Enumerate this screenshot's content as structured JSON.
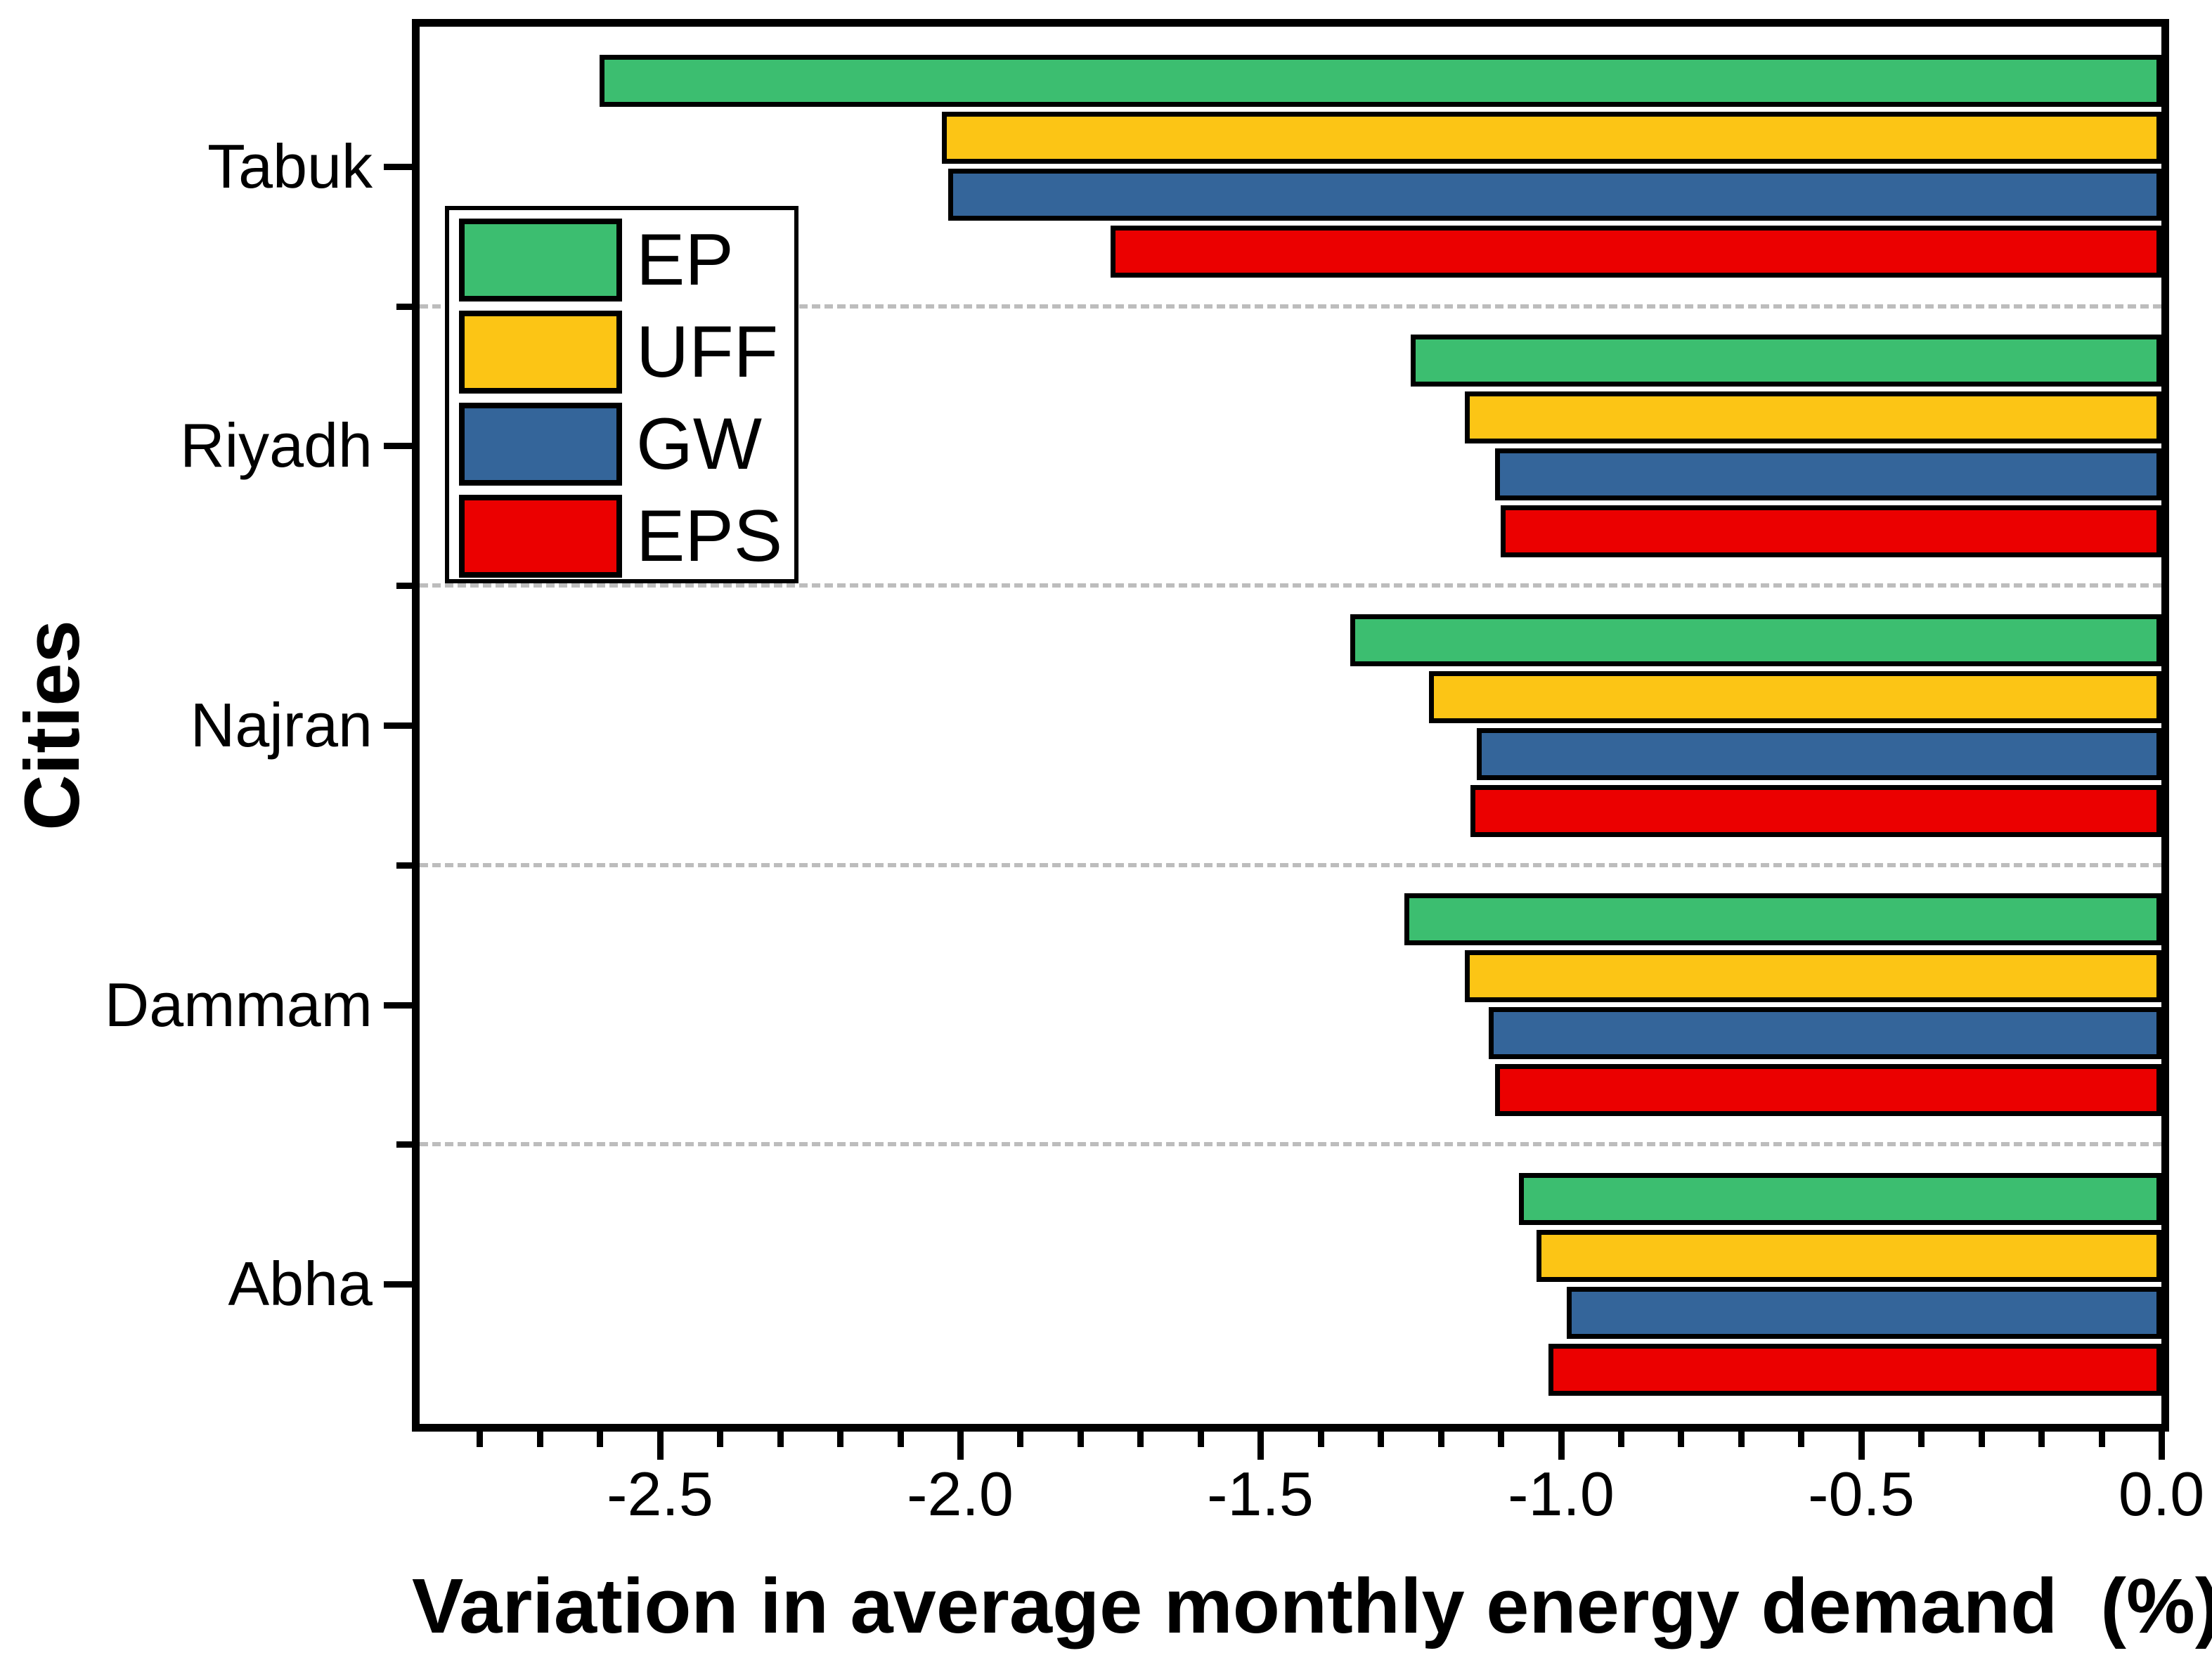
{
  "chart_data": {
    "type": "bar",
    "orientation": "horizontal",
    "xlabel": "Variation in average monthly energy demand  (%)",
    "ylabel": "Cities",
    "xlim": [
      -2.9,
      0.0
    ],
    "xtick_labels": [
      "-2.5",
      "-2.0",
      "-1.5",
      "-1.0",
      "-0.5",
      "0.0"
    ],
    "xticks": [
      -2.5,
      -2.0,
      -1.5,
      -1.0,
      -0.5,
      0.0
    ],
    "minor_tick_step": 0.1,
    "categories": [
      "Tabuk",
      "Riyadh",
      "Najran",
      "Dammam",
      "Abha"
    ],
    "series": [
      {
        "name": "EP",
        "color": "#3CBE70",
        "values": [
          -2.6,
          -1.25,
          -1.35,
          -1.26,
          -1.07
        ]
      },
      {
        "name": "UFF",
        "color": "#FCC515",
        "values": [
          -2.03,
          -1.16,
          -1.22,
          -1.16,
          -1.04
        ]
      },
      {
        "name": "GW",
        "color": "#34659A",
        "values": [
          -2.02,
          -1.11,
          -1.14,
          -1.12,
          -0.99
        ]
      },
      {
        "name": "EPS",
        "color": "#EB0000",
        "values": [
          -1.75,
          -1.1,
          -1.15,
          -1.11,
          -1.02
        ]
      }
    ],
    "legend": {
      "entries": [
        "EP",
        "UFF",
        "GW",
        "EPS"
      ],
      "position": "upper-left-inside"
    },
    "grid": "dashed gray horizontal separators between category groups",
    "bar_edge_color": "#000000",
    "separator_color": "#BDBDBD"
  }
}
